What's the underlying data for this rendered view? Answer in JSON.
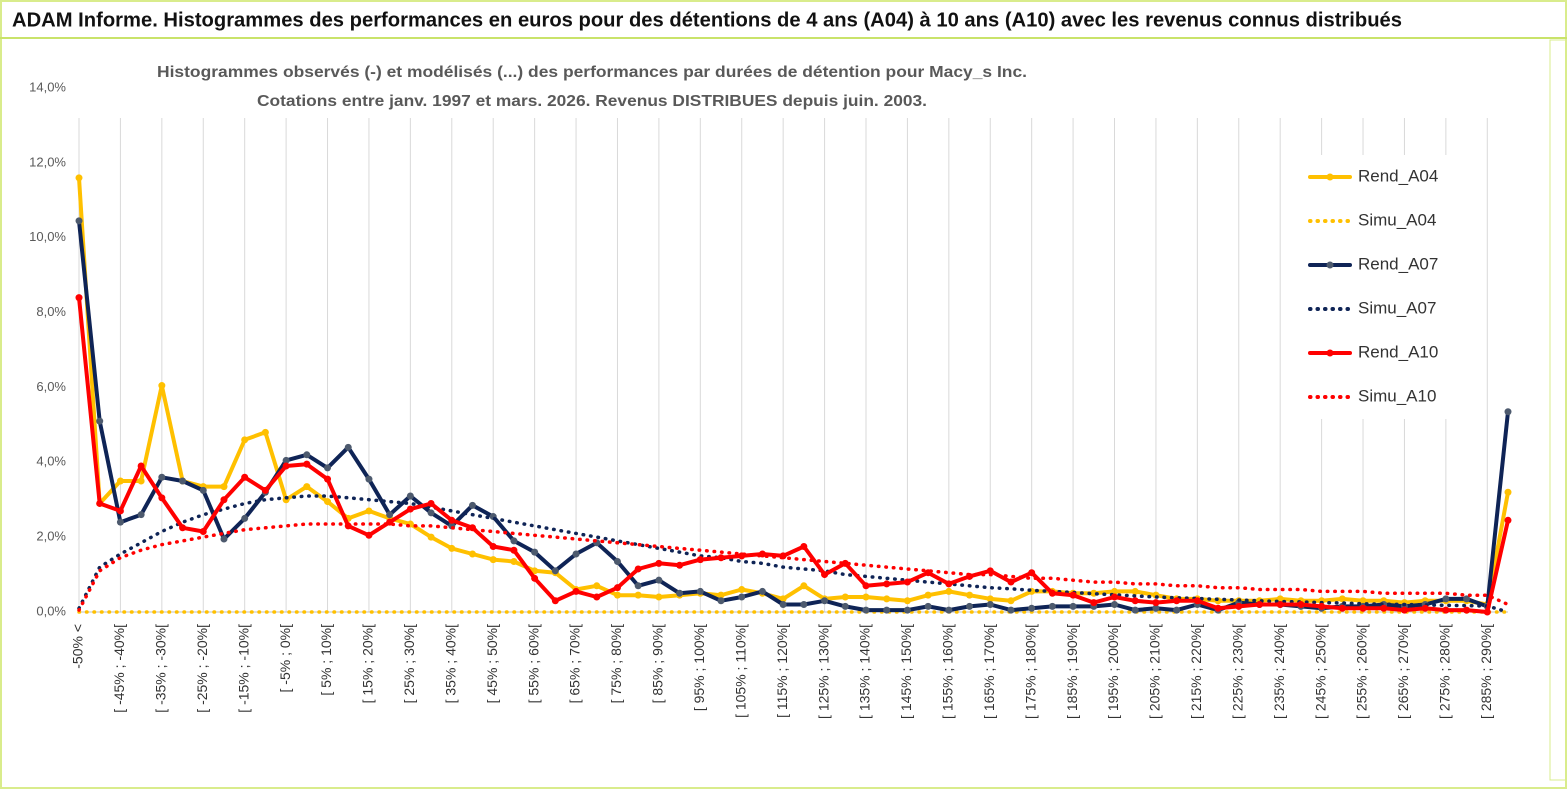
{
  "chart_data": {
    "type": "line",
    "header": "ADAM Informe. Histogrammes des performances en euros pour des détentions de 4 ans (A04) à 10 ans (A10) avec les revenus connus distribués",
    "title": "Histogrammes observés (-) et modélisés (...) des performances par durées de détention pour Macy_s  Inc.",
    "subtitle": "Cotations entre janv. 1997 et mars. 2026.  Revenus DISTRIBUES depuis juin. 2003.",
    "categories": [
      "-50% <",
      null,
      "[ -45% ; -40%[",
      null,
      "[ -35% ; -30%[",
      null,
      "[ -25% ; -20%[",
      null,
      "[ -15% ; -10%[",
      null,
      "[ -5% ; 0%[",
      null,
      "[ 5% ; 10%[",
      null,
      "[ 15% ; 20%[",
      null,
      "[ 25% ; 30%[",
      null,
      "[ 35% ; 40%[",
      null,
      "[ 45% ; 50%[",
      null,
      "[ 55% ; 60%[",
      null,
      "[ 65% ; 70%[",
      null,
      "[ 75% ; 80%[",
      null,
      "[ 85% ; 90%[",
      null,
      "[ 95% ; 100%[",
      null,
      "[ 105% ; 110%[",
      null,
      "[ 115% ; 120%[",
      null,
      "[ 125% ; 130%[",
      null,
      "[ 135% ; 140%[",
      null,
      "[ 145% ; 150%[",
      null,
      "[ 155% ; 160%[",
      null,
      "[ 165% ; 170%[",
      null,
      "[ 175% ; 180%[",
      null,
      "[ 185% ; 190%[",
      null,
      "[ 195% ; 200%[",
      null,
      "[ 205% ; 210%[",
      null,
      "[ 215% ; 220%[",
      null,
      "[ 225% ; 230%[",
      null,
      "[ 235% ; 240%[",
      null,
      "[ 245% ; 250%[",
      null,
      "[ 255% ; 260%[",
      null,
      "[ 265% ; 270%[",
      null,
      "[ 275% ; 280%[",
      null,
      "[ 285% ; 290%[",
      null
    ],
    "series": [
      {
        "name": "Rend_A04",
        "color": "#ffc000",
        "dash": "solid",
        "markers": true,
        "values": [
          11.6,
          2.9,
          3.5,
          3.5,
          6.05,
          3.5,
          3.35,
          3.35,
          4.6,
          4.8,
          3.0,
          3.35,
          2.95,
          2.5,
          2.7,
          2.5,
          2.35,
          2.0,
          1.7,
          1.55,
          1.4,
          1.35,
          1.1,
          1.05,
          0.6,
          0.7,
          0.45,
          0.45,
          0.4,
          0.45,
          0.5,
          0.45,
          0.6,
          0.5,
          0.35,
          0.7,
          0.35,
          0.4,
          0.4,
          0.35,
          0.3,
          0.45,
          0.55,
          0.45,
          0.35,
          0.3,
          0.55,
          0.55,
          0.5,
          0.5,
          0.55,
          0.55,
          0.45,
          0.35,
          0.35,
          0.3,
          0.3,
          0.3,
          0.35,
          0.3,
          0.3,
          0.35,
          0.3,
          0.3,
          0.25,
          0.3,
          0.3,
          0.3,
          0.2,
          3.2
        ]
      },
      {
        "name": "Simu_A04",
        "color": "#ffc000",
        "dash": "dotted",
        "markers": false,
        "values": [
          0,
          0,
          0,
          0,
          0,
          0,
          0,
          0,
          0,
          0,
          0,
          0,
          0,
          0,
          0,
          0,
          0,
          0,
          0,
          0,
          0,
          0,
          0,
          0,
          0,
          0,
          0,
          0,
          0,
          0,
          0,
          0,
          0,
          0,
          0,
          0,
          0,
          0,
          0,
          0,
          0,
          0,
          0,
          0,
          0,
          0,
          0,
          0,
          0,
          0,
          0,
          0,
          0,
          0,
          0,
          0,
          0,
          0,
          0,
          0,
          0,
          0,
          0,
          0,
          0,
          0,
          0,
          0,
          0,
          0
        ]
      },
      {
        "name": "Rend_A07",
        "color": "#0f2456",
        "marker_color": "#4d5a6e",
        "dash": "solid",
        "markers": true,
        "values": [
          10.45,
          5.1,
          2.4,
          2.6,
          3.6,
          3.5,
          3.25,
          1.95,
          2.5,
          3.2,
          4.05,
          4.2,
          3.85,
          4.4,
          3.55,
          2.6,
          3.1,
          2.65,
          2.3,
          2.85,
          2.55,
          1.9,
          1.6,
          1.1,
          1.55,
          1.85,
          1.35,
          0.7,
          0.85,
          0.5,
          0.55,
          0.3,
          0.4,
          0.55,
          0.2,
          0.2,
          0.3,
          0.15,
          0.05,
          0.05,
          0.05,
          0.15,
          0.05,
          0.15,
          0.2,
          0.05,
          0.1,
          0.15,
          0.15,
          0.15,
          0.2,
          0.05,
          0.1,
          0.05,
          0.2,
          0.05,
          0.25,
          0.2,
          0.2,
          0.15,
          0.1,
          0.15,
          0.15,
          0.2,
          0.15,
          0.2,
          0.35,
          0.35,
          0.15,
          5.35
        ]
      },
      {
        "name": "Simu_A07",
        "color": "#0f2456",
        "dash": "dotted",
        "markers": false,
        "values": [
          0.1,
          1.2,
          1.55,
          1.85,
          2.15,
          2.4,
          2.6,
          2.75,
          2.9,
          3.0,
          3.05,
          3.1,
          3.1,
          3.05,
          3.0,
          2.95,
          2.9,
          2.8,
          2.7,
          2.6,
          2.5,
          2.4,
          2.3,
          2.2,
          2.1,
          2.0,
          1.9,
          1.8,
          1.7,
          1.6,
          1.5,
          1.45,
          1.35,
          1.3,
          1.2,
          1.15,
          1.1,
          1.0,
          0.95,
          0.9,
          0.85,
          0.8,
          0.75,
          0.7,
          0.65,
          0.62,
          0.58,
          0.55,
          0.52,
          0.49,
          0.46,
          0.43,
          0.4,
          0.38,
          0.36,
          0.34,
          0.32,
          0.3,
          0.28,
          0.27,
          0.25,
          0.24,
          0.22,
          0.21,
          0.2,
          0.19,
          0.18,
          0.17,
          0.16,
          0.0
        ]
      },
      {
        "name": "Rend_A10",
        "color": "#ff0000",
        "dash": "solid",
        "markers": true,
        "values": [
          8.4,
          2.9,
          2.7,
          3.9,
          3.05,
          2.25,
          2.15,
          3.0,
          3.6,
          3.25,
          3.9,
          3.95,
          3.55,
          2.3,
          2.05,
          2.4,
          2.75,
          2.9,
          2.45,
          2.25,
          1.75,
          1.65,
          0.9,
          0.3,
          0.55,
          0.4,
          0.65,
          1.15,
          1.3,
          1.25,
          1.4,
          1.45,
          1.5,
          1.55,
          1.5,
          1.75,
          1.0,
          1.3,
          0.7,
          0.75,
          0.8,
          1.05,
          0.75,
          0.95,
          1.1,
          0.8,
          1.05,
          0.5,
          0.45,
          0.25,
          0.4,
          0.3,
          0.25,
          0.3,
          0.3,
          0.1,
          0.15,
          0.2,
          0.2,
          0.2,
          0.15,
          0.1,
          0.1,
          0.1,
          0.05,
          0.1,
          0.05,
          0.05,
          0.0,
          2.45
        ]
      },
      {
        "name": "Simu_A10",
        "color": "#ff0000",
        "dash": "dotted",
        "markers": false,
        "values": [
          0.05,
          1.1,
          1.45,
          1.65,
          1.8,
          1.9,
          2.0,
          2.1,
          2.2,
          2.25,
          2.3,
          2.35,
          2.35,
          2.35,
          2.35,
          2.35,
          2.3,
          2.3,
          2.25,
          2.2,
          2.15,
          2.1,
          2.05,
          2.0,
          1.95,
          1.9,
          1.85,
          1.8,
          1.75,
          1.7,
          1.65,
          1.6,
          1.55,
          1.5,
          1.45,
          1.4,
          1.35,
          1.3,
          1.25,
          1.2,
          1.15,
          1.1,
          1.05,
          1.0,
          1.0,
          0.95,
          0.9,
          0.9,
          0.85,
          0.8,
          0.8,
          0.75,
          0.75,
          0.7,
          0.7,
          0.65,
          0.65,
          0.6,
          0.6,
          0.6,
          0.55,
          0.55,
          0.55,
          0.5,
          0.5,
          0.5,
          0.5,
          0.45,
          0.45,
          0.2
        ]
      }
    ],
    "ylim": [
      0,
      14
    ],
    "yticks": [
      {
        "value": 0,
        "label": "0,0%"
      },
      {
        "value": 2,
        "label": "2,0%"
      },
      {
        "value": 4,
        "label": "4,0%"
      },
      {
        "value": 6,
        "label": "6,0%"
      },
      {
        "value": 8,
        "label": "8,0%"
      },
      {
        "value": 10,
        "label": "10,0%"
      },
      {
        "value": 12,
        "label": "12,0%"
      },
      {
        "value": 14,
        "label": "14,0%"
      }
    ],
    "grid": "x",
    "legend": "right"
  }
}
